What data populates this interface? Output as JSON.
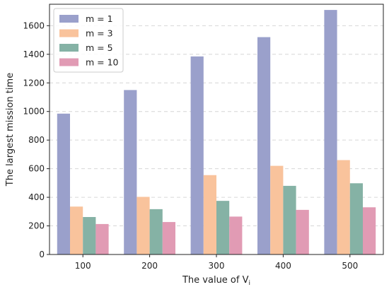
{
  "chart_data": {
    "type": "bar",
    "categories": [
      "100",
      "200",
      "300",
      "400",
      "500"
    ],
    "series": [
      {
        "name": "m = 1",
        "values": [
          985,
          1150,
          1385,
          1520,
          1710
        ],
        "color": "#9aa0cb"
      },
      {
        "name": "m = 3",
        "values": [
          335,
          403,
          555,
          620,
          660
        ],
        "color": "#f9c39c"
      },
      {
        "name": "m = 5",
        "values": [
          262,
          317,
          375,
          480,
          498
        ],
        "color": "#85b2a5"
      },
      {
        "name": "m = 10",
        "values": [
          213,
          227,
          265,
          312,
          330
        ],
        "color": "#e19bb4"
      }
    ],
    "title": "",
    "xlabel": "The value of V",
    "xlabel_subscript": "i",
    "ylabel": "The largest mission time",
    "ylim": [
      0,
      1750
    ],
    "yticks": [
      0,
      200,
      400,
      600,
      800,
      1000,
      1200,
      1400,
      1600
    ],
    "grid": "horizontal dashed",
    "legend_position": "top-left"
  }
}
